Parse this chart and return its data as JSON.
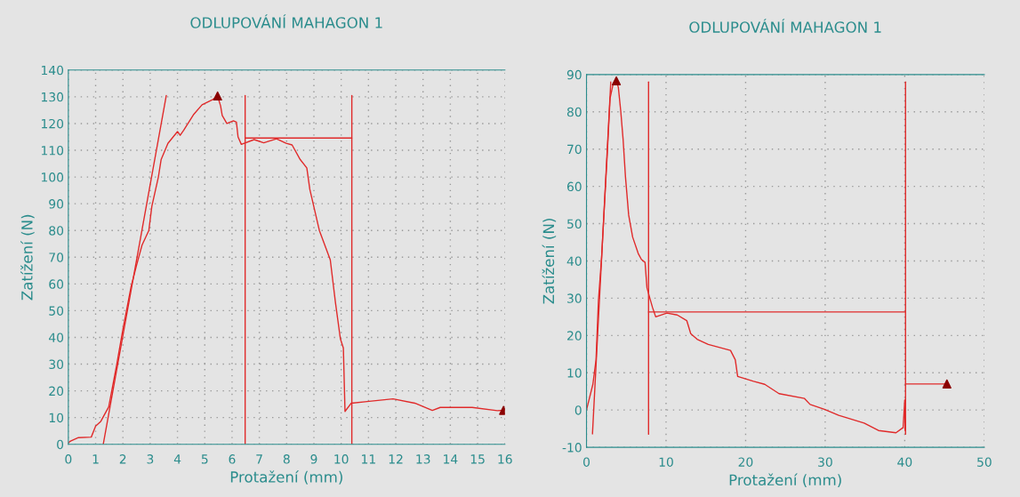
{
  "chart_data": [
    {
      "type": "line",
      "title": "ODLUPOVÁNÍ MAHAGON 1",
      "xlabel": "Protažení (mm)",
      "ylabel": "Zatížení (N)",
      "xlim": [
        0,
        16
      ],
      "ylim": [
        0,
        140
      ],
      "xticks": [
        0,
        1,
        2,
        3,
        4,
        5,
        6,
        7,
        8,
        9,
        10,
        11,
        12,
        13,
        14,
        15,
        16
      ],
      "yticks": [
        0,
        10,
        20,
        30,
        40,
        50,
        60,
        70,
        80,
        90,
        100,
        110,
        120,
        130,
        140
      ],
      "grid": true,
      "series": [
        {
          "type": "line",
          "color": "#e02a2a",
          "x": [
            0,
            0.08,
            0.37,
            0.84,
            1.0,
            1.19,
            1.48,
            1.77,
            2.0,
            2.3,
            2.5,
            2.7,
            2.95,
            3.06,
            3.3,
            3.4,
            3.65,
            4.0,
            4.1,
            4.23,
            4.6,
            4.9,
            5.3,
            5.47,
            5.58,
            5.64,
            5.81,
            6.05,
            6.16,
            6.22,
            6.34,
            6.81,
            7.16,
            7.63,
            7.98,
            8.2,
            8.5,
            8.74,
            8.85,
            9.2,
            9.6,
            9.79,
            9.97,
            10.08,
            10.14,
            10.37,
            10.95,
            11.9,
            12.7,
            13.34,
            13.63,
            14.8,
            15.72,
            15.95
          ],
          "values": [
            0.6,
            1.2,
            2.5,
            2.7,
            6.8,
            8.6,
            14,
            29.6,
            43,
            59,
            67,
            74.5,
            80,
            89,
            100,
            106.5,
            112.6,
            117,
            115.6,
            117.5,
            123.5,
            127,
            129,
            130.3,
            126.6,
            123,
            120,
            121,
            120.5,
            115,
            112.2,
            114,
            112.8,
            114.3,
            112.6,
            112,
            106.5,
            103.4,
            95.4,
            80,
            69,
            53,
            39.5,
            36,
            12.3,
            15.4,
            16,
            17,
            15.4,
            12.7,
            13.8,
            13.8,
            12.6,
            12.7
          ]
        },
        {
          "type": "line",
          "color": "#e02a2a",
          "x": [
            1.28,
            3.59
          ],
          "values": [
            0,
            130.5
          ]
        },
        {
          "type": "line",
          "color": "#e02a2a",
          "x": [
            6.48,
            6.48
          ],
          "values": [
            0,
            130.5
          ]
        },
        {
          "type": "line",
          "color": "#e02a2a",
          "x": [
            10.39,
            10.39
          ],
          "values": [
            0,
            130.5
          ]
        },
        {
          "type": "line",
          "color": "#e02a2a",
          "x": [
            6.48,
            10.39
          ],
          "values": [
            114.6,
            114.6
          ]
        },
        {
          "type": "scatter",
          "marker": "triangle",
          "color": "#8b0000",
          "x": [
            5.47,
            15.95
          ],
          "values": [
            130.3,
            12.7
          ]
        }
      ]
    },
    {
      "type": "line",
      "title": "ODLUPOVÁNÍ MAHAGON 1",
      "xlabel": "Protažení (mm)",
      "ylabel": "Zatížení (N)",
      "xlim": [
        0,
        50
      ],
      "ylim": [
        -10,
        90
      ],
      "xticks": [
        0,
        10,
        20,
        30,
        40,
        50
      ],
      "yticks": [
        -10,
        0,
        10,
        20,
        30,
        40,
        50,
        60,
        70,
        80,
        90
      ],
      "grid": true,
      "series": [
        {
          "type": "line",
          "color": "#e02a2a",
          "x": [
            0,
            0.8,
            1.2,
            1.5,
            1.9,
            2.25,
            2.6,
            2.96,
            3.3,
            3.75,
            4.0,
            4.3,
            4.6,
            4.9,
            5.3,
            5.8,
            6.5,
            6.9,
            7.36,
            7.6,
            7.96,
            8.3,
            8.7,
            10.1,
            11.4,
            12.6,
            13.1,
            13.9,
            15.3,
            18.1,
            18.7,
            19,
            21,
            22.4,
            24.2,
            27.4,
            28.1,
            29.9,
            31.7,
            34.9,
            36.7,
            38.9,
            39.8,
            40,
            40.05
          ],
          "values": [
            0,
            6.9,
            13.5,
            29.4,
            41,
            54.8,
            68.4,
            83.6,
            87,
            88.3,
            86.6,
            80.3,
            72.6,
            62.5,
            52.3,
            46.4,
            42,
            40.4,
            39.6,
            32.8,
            30,
            27.5,
            25,
            26,
            25.5,
            24,
            20.5,
            19,
            17.6,
            16,
            13.5,
            9,
            7.7,
            6.9,
            4.4,
            3.1,
            1.5,
            0.2,
            -1.4,
            -3.5,
            -5.5,
            -6.1,
            -4.7,
            2.7,
            -5.5
          ]
        },
        {
          "type": "line",
          "color": "#e02a2a",
          "x": [
            0.75,
            3.05
          ],
          "values": [
            -6.4,
            88
          ]
        },
        {
          "type": "line",
          "color": "#e02a2a",
          "x": [
            7.8,
            7.8
          ],
          "values": [
            -6.5,
            88
          ]
        },
        {
          "type": "line",
          "color": "#e02a2a",
          "x": [
            40.1,
            40.1
          ],
          "values": [
            -6.5,
            88
          ]
        },
        {
          "type": "line",
          "color": "#e02a2a",
          "x": [
            7.8,
            40.1
          ],
          "values": [
            26.3,
            26.3
          ]
        },
        {
          "type": "line",
          "color": "#e02a2a",
          "x": [
            40.1,
            45.3
          ],
          "values": [
            7,
            7
          ]
        },
        {
          "type": "scatter",
          "marker": "triangle",
          "color": "#8b0000",
          "x": [
            3.75,
            45.3
          ],
          "values": [
            88.3,
            7
          ]
        }
      ]
    }
  ]
}
